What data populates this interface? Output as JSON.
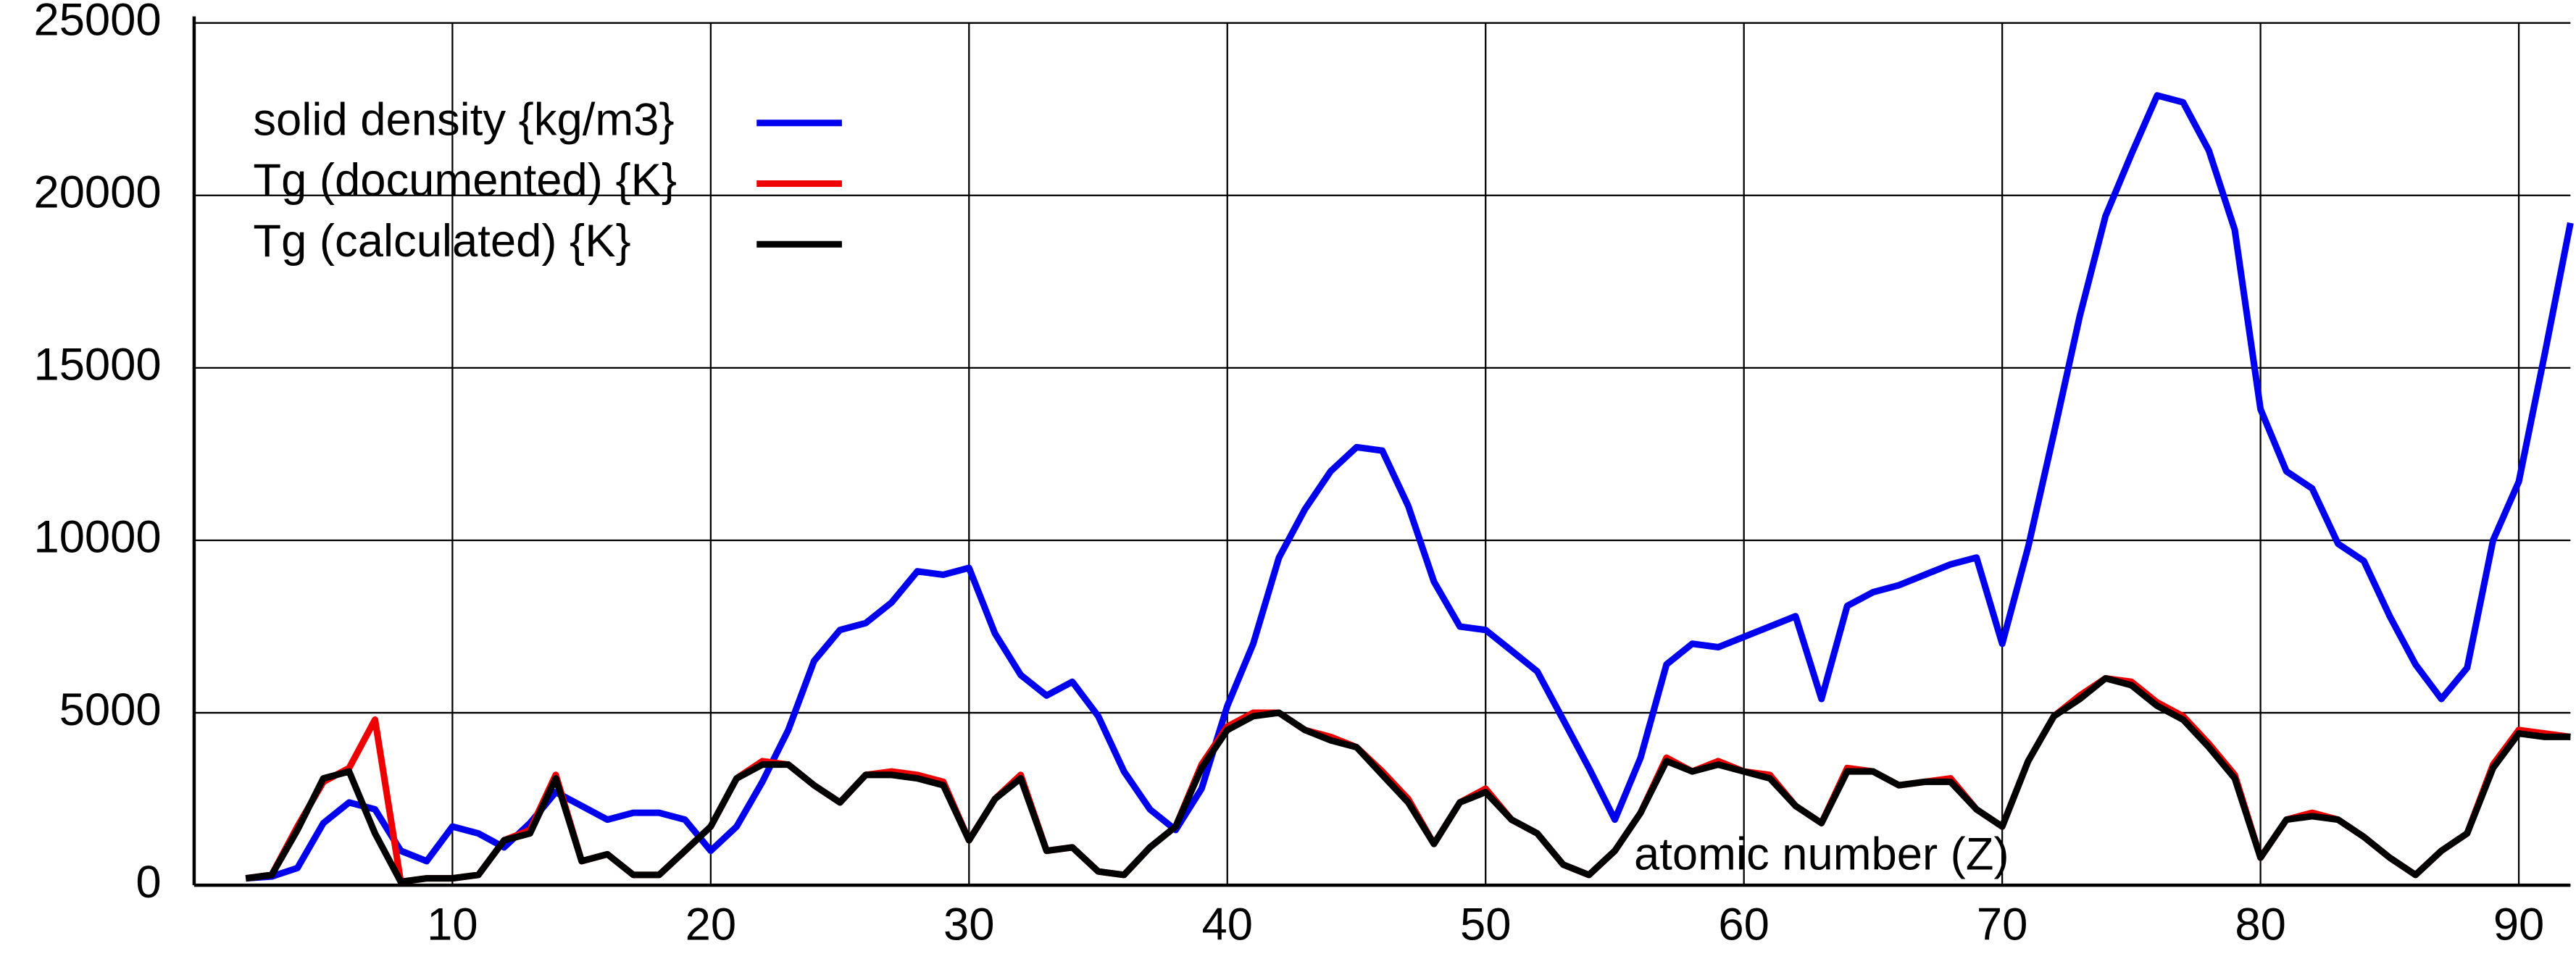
{
  "chart_data": {
    "type": "line",
    "x_label": "atomic number (Z)",
    "x": [
      2,
      3,
      4,
      5,
      6,
      7,
      8,
      9,
      10,
      11,
      12,
      13,
      14,
      15,
      16,
      17,
      18,
      19,
      20,
      21,
      22,
      23,
      24,
      25,
      26,
      27,
      28,
      29,
      30,
      31,
      32,
      33,
      34,
      35,
      36,
      37,
      38,
      39,
      40,
      41,
      42,
      43,
      44,
      45,
      46,
      47,
      48,
      49,
      50,
      51,
      52,
      53,
      54,
      55,
      56,
      57,
      58,
      59,
      60,
      61,
      62,
      63,
      64,
      65,
      66,
      67,
      68,
      69,
      70,
      71,
      72,
      73,
      74,
      75,
      76,
      77,
      78,
      79,
      80,
      81,
      82,
      83,
      84,
      85,
      86,
      87,
      88,
      89,
      90,
      91,
      92
    ],
    "series": [
      {
        "name": "solid density {kg/m3}",
        "color": "#0000ee",
        "values": [
          200,
          250,
          500,
          1800,
          2400,
          2200,
          1000,
          700,
          1700,
          1500,
          1100,
          1800,
          2700,
          2300,
          1900,
          2100,
          2100,
          1900,
          1000,
          1700,
          3000,
          4500,
          6500,
          7400,
          7600,
          8200,
          9100,
          9000,
          9200,
          7300,
          6100,
          5500,
          5900,
          4900,
          3300,
          2200,
          1600,
          2800,
          5200,
          7000,
          9500,
          10900,
          12000,
          12700,
          12600,
          11000,
          8800,
          7500,
          7400,
          6800,
          6200,
          4800,
          3400,
          1900,
          3700,
          6400,
          7000,
          6900,
          7200,
          7500,
          7800,
          5400,
          8100,
          8500,
          8700,
          9000,
          9300,
          9500,
          7000,
          9800,
          13100,
          16500,
          19400,
          21200,
          22900,
          22700,
          21300,
          19000,
          13800,
          12000,
          11500,
          9900,
          9400,
          7800,
          6400,
          5400,
          6300,
          10000,
          11700,
          15400,
          19200
        ]
      },
      {
        "name": "Tg (documented) {K}",
        "color": "#ee0000",
        "values": [
          200,
          300,
          1700,
          3000,
          3400,
          4800,
          100,
          200,
          200,
          300,
          1300,
          1600,
          3200,
          700,
          900,
          300,
          300,
          1000,
          1700,
          3100,
          3600,
          3500,
          2900,
          2400,
          3200,
          3300,
          3200,
          3000,
          1300,
          2500,
          3200,
          1000,
          1100,
          400,
          300,
          1100,
          1700,
          3500,
          4600,
          5000,
          5000,
          4500,
          4300,
          4000,
          3300,
          2500,
          1200,
          2400,
          2800,
          1900,
          1500,
          600,
          300,
          1000,
          2100,
          3700,
          3300,
          3600,
          3300,
          3200,
          2300,
          1800,
          3400,
          3300,
          2900,
          3000,
          3100,
          2200,
          1700,
          3600,
          4900,
          5500,
          6000,
          5900,
          5300,
          4900,
          4100,
          3200,
          800,
          1900,
          2100,
          1900,
          1400,
          800,
          300,
          1000,
          1500,
          3500,
          4500,
          4400,
          4300
        ]
      },
      {
        "name": "Tg (calculated) {K}",
        "color": "#000000",
        "values": [
          200,
          300,
          1600,
          3100,
          3300,
          1500,
          100,
          200,
          200,
          300,
          1300,
          1500,
          3100,
          700,
          900,
          300,
          300,
          1000,
          1700,
          3100,
          3500,
          3500,
          2900,
          2400,
          3200,
          3200,
          3100,
          2900,
          1300,
          2500,
          3100,
          1000,
          1100,
          400,
          300,
          1100,
          1700,
          3400,
          4500,
          4900,
          5000,
          4500,
          4200,
          4000,
          3200,
          2400,
          1200,
          2400,
          2700,
          1900,
          1500,
          600,
          300,
          1000,
          2100,
          3600,
          3300,
          3500,
          3300,
          3100,
          2300,
          1800,
          3300,
          3300,
          2900,
          3000,
          3000,
          2200,
          1700,
          3600,
          4900,
          5400,
          6000,
          5800,
          5200,
          4800,
          4000,
          3100,
          800,
          1900,
          2000,
          1900,
          1400,
          800,
          300,
          1000,
          1500,
          3400,
          4400,
          4300,
          4300
        ]
      }
    ],
    "xlim": [
      0,
      92
    ],
    "ylim": [
      0,
      25000
    ],
    "xticks": [
      10,
      20,
      30,
      40,
      50,
      60,
      70,
      80,
      90
    ],
    "yticks": [
      0,
      5000,
      10000,
      15000,
      20000,
      25000
    ],
    "grid": true
  }
}
